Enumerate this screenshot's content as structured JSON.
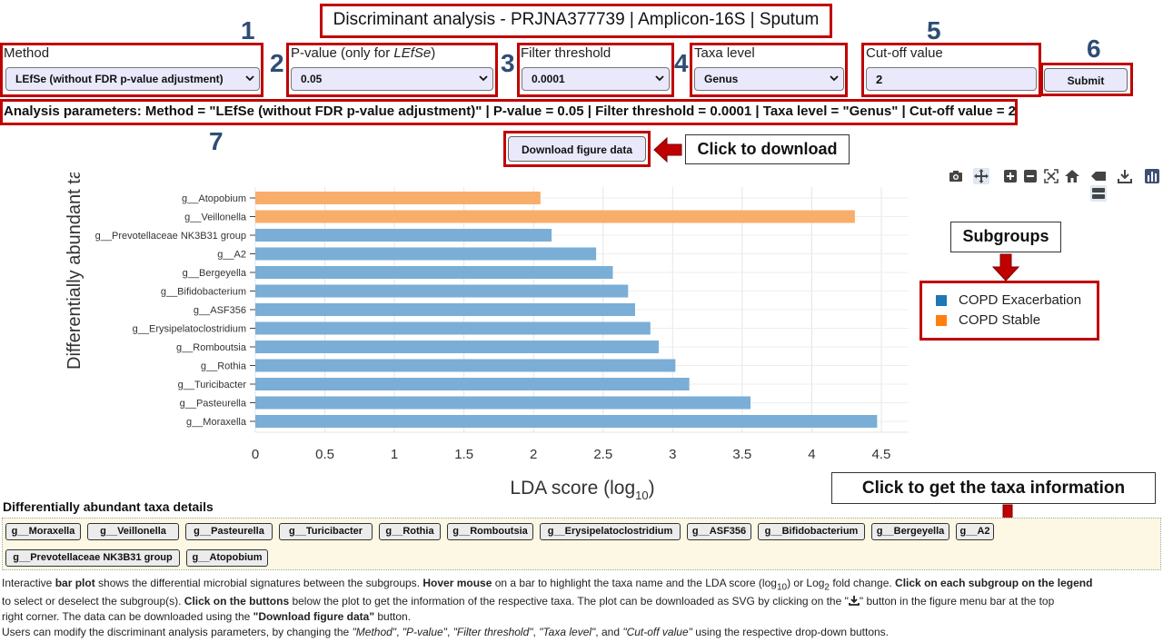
{
  "title": "Discriminant analysis - PRJNA377739 | Amplicon-16S | Sputum",
  "step_numbers": [
    "1",
    "2",
    "3",
    "4",
    "5",
    "6",
    "7"
  ],
  "controls": {
    "method": {
      "label": "Method",
      "value": "LEfSe (without FDR p-value adjustment)"
    },
    "pvalue": {
      "label_main": "P-value (only for ",
      "label_em": "LEfSe",
      "label_end": ")",
      "value": "0.05"
    },
    "filter": {
      "label": "Filter threshold",
      "value": "0.0001"
    },
    "taxa_level": {
      "label": "Taxa level",
      "value": "Genus"
    },
    "cutoff": {
      "label": "Cut-off value",
      "value": "2"
    },
    "submit_label": "Submit"
  },
  "analysis_params": "Analysis parameters: Method = \"LEfSe (without FDR p-value adjustment)\" | P-value = 0.05 | Filter threshold = 0.0001 | Taxa level = \"Genus\" | Cut-off value = 2",
  "download_label": "Download figure data",
  "callouts": {
    "download": "Click to download",
    "subgroups": "Subgroups",
    "taxa_info": "Click to get the taxa information"
  },
  "toolbar_icons": [
    "camera-icon",
    "pan-icon",
    "zoom-in-icon",
    "zoom-out-icon",
    "autoscale-icon",
    "home-icon",
    "hover-compare-icon",
    "download-svg-icon",
    "plotly-logo-icon",
    "spike-lines-icon"
  ],
  "colors": {
    "exacerbation": "#1f77b4",
    "stable": "#ff7f0e",
    "exacerbation_bar": "#7aaed6",
    "stable_bar": "#f9ad6b",
    "annotation_red": "#c00000",
    "step_number_blue": "#2f4d75"
  },
  "chart_data": {
    "type": "bar",
    "orientation": "horizontal",
    "xlabel": "LDA score (log",
    "xlabel_sub": "10",
    "xlabel_end": ")",
    "ylabel": "Differentially abundant taxa",
    "xlim": [
      0,
      4.6
    ],
    "xticks": [
      "0",
      "0.5",
      "1",
      "1.5",
      "2",
      "2.5",
      "3",
      "3.5",
      "4",
      "4.5"
    ],
    "grid": true,
    "legend_position": "right",
    "categories": [
      "g__Atopobium",
      "g__Veillonella",
      "g__Prevotellaceae NK3B31 group",
      "g__A2",
      "g__Bergeyella",
      "g__Bifidobacterium",
      "g__ASF356",
      "g__Erysipelatoclostridium",
      "g__Romboutsia",
      "g__Rothia",
      "g__Turicibacter",
      "g__Pasteurella",
      "g__Moraxella"
    ],
    "values": [
      2.05,
      4.31,
      2.13,
      2.45,
      2.57,
      2.68,
      2.73,
      2.84,
      2.9,
      3.02,
      3.12,
      3.56,
      4.47
    ],
    "groups": [
      "COPD Stable",
      "COPD Stable",
      "COPD Exacerbation",
      "COPD Exacerbation",
      "COPD Exacerbation",
      "COPD Exacerbation",
      "COPD Exacerbation",
      "COPD Exacerbation",
      "COPD Exacerbation",
      "COPD Exacerbation",
      "COPD Exacerbation",
      "COPD Exacerbation",
      "COPD Exacerbation"
    ],
    "legend": [
      "COPD Exacerbation",
      "COPD Stable"
    ]
  },
  "details_title": "Differentially abundant taxa details",
  "taxa_buttons": [
    "g__Moraxella",
    "g__Veillonella",
    "g__Pasteurella",
    "g__Turicibacter",
    "g__Rothia",
    "g__Romboutsia",
    "g__Erysipelatoclostridium",
    "g__ASF356",
    "g__Bifidobacterium",
    "g__Bergeyella",
    "g__A2",
    "g__Prevotellaceae NK3B31 group",
    "g__Atopobium"
  ],
  "description": {
    "l1_a": "Interactive ",
    "l1_b": "bar plot",
    "l1_c": " shows the differential microbial signatures between the subgroups. ",
    "l1_d": "Hover mouse",
    "l1_e": " on a bar to highlight the taxa name and the LDA score (log",
    "l1_sub1": "10",
    "l1_f": ") or Log",
    "l1_sub2": "2",
    "l1_g": " fold change. ",
    "l1_h": "Click on each subgroup on the legend",
    "l2_a": "to select or deselect the subgroup(s). ",
    "l2_b": "Click on the buttons",
    "l2_c": " below the plot to get the information of the respective taxa. The plot can be downloaded as SVG by clicking on the \"",
    "l2_d": "\" button in the figure menu bar at the top",
    "l3_a": "right corner. The data can be downloaded using the ",
    "l3_b": "\"Download figure data\"",
    "l3_c": " button.",
    "l4_a": "Users can modify the discriminant analysis parameters, by changing the ",
    "l4_b": "\"Method\"",
    "l4_c": ", ",
    "l4_d": "\"P-value\"",
    "l4_e": ", ",
    "l4_f": "\"Filter threshold\"",
    "l4_g": ", ",
    "l4_h": "\"Taxa level\"",
    "l4_i": ", and ",
    "l4_j": "\"Cut-off value\"",
    "l4_k": " using the respective drop-down buttons."
  }
}
